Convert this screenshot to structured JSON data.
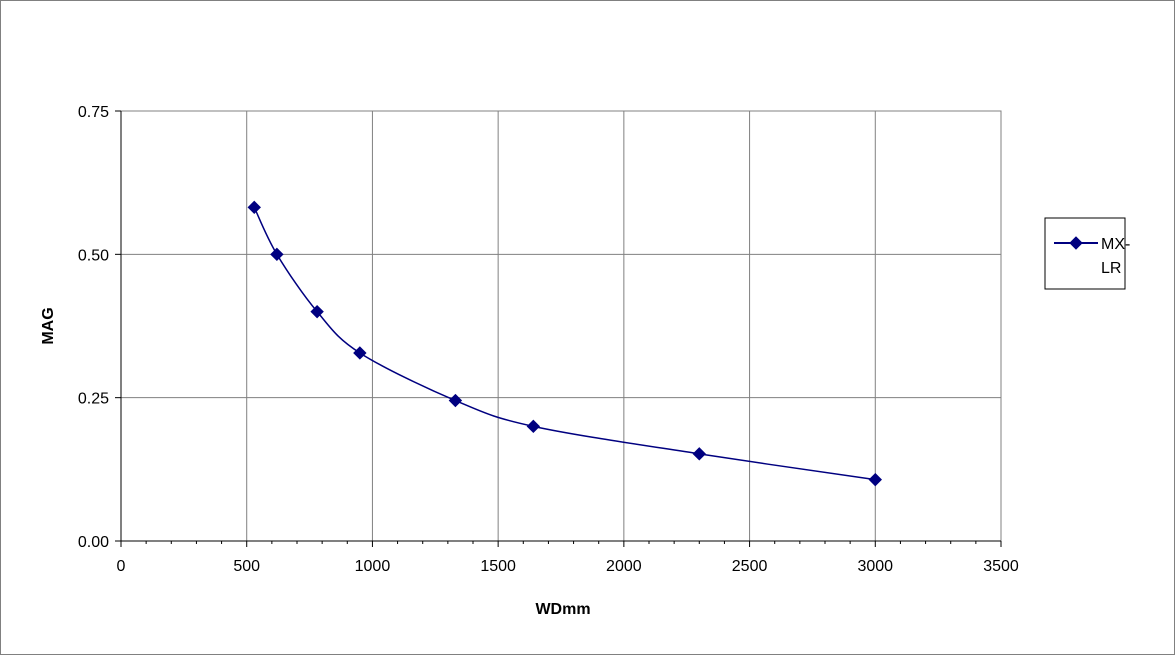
{
  "chart_data": {
    "type": "line",
    "title": "",
    "xlabel": "WDmm",
    "ylabel": "MAG",
    "xlim": [
      0,
      3500
    ],
    "ylim": [
      0,
      0.75
    ],
    "x_ticks": [
      "0",
      "500",
      "1000",
      "1500",
      "2000",
      "2500",
      "3000",
      "3500"
    ],
    "x_tick_values": [
      0,
      500,
      1000,
      1500,
      2000,
      2500,
      3000,
      3500
    ],
    "y_ticks": [
      "0.00",
      "0.25",
      "0.50",
      "0.75"
    ],
    "y_tick_values": [
      0,
      0.25,
      0.5,
      0.75
    ],
    "grid": true,
    "smooth": true,
    "legend_position": "right",
    "series": [
      {
        "name": "MX-LR",
        "legend_lines": [
          "MX-",
          "LR"
        ],
        "color": "#000080",
        "marker": "diamond",
        "x": [
          530,
          620,
          780,
          950,
          1330,
          1640,
          2300,
          3000
        ],
        "y": [
          0.582,
          0.5,
          0.4,
          0.328,
          0.245,
          0.2,
          0.152,
          0.107
        ]
      }
    ]
  }
}
